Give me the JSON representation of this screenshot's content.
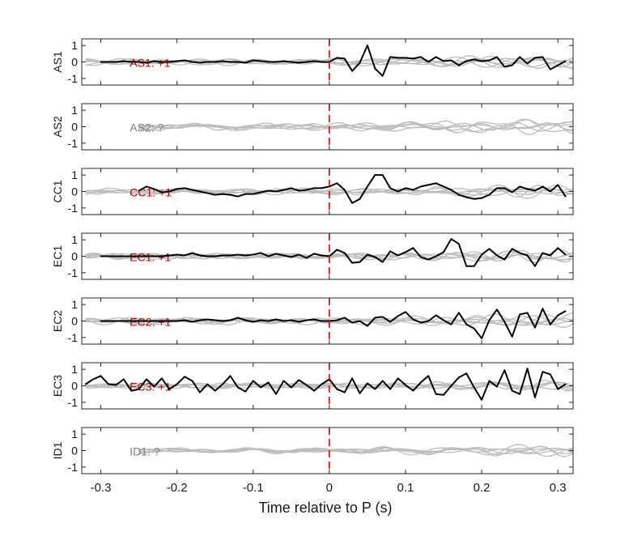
{
  "chart_data": {
    "type": "line",
    "xlabel": "Time relative to P (s)",
    "xlim": [
      -0.325,
      0.32
    ],
    "x_ticks": [
      -0.3,
      -0.2,
      -0.1,
      0,
      0.1,
      0.2,
      0.3
    ],
    "x_tick_labels": [
      "-0.3",
      "-0.2",
      "-0.1",
      "0",
      "0.1",
      "0.2",
      "0.3"
    ],
    "ylim": [
      -1.4,
      1.4
    ],
    "y_ticks": [
      1,
      0,
      -1
    ],
    "y_tick_labels": [
      "1",
      "0",
      "-1"
    ],
    "p_marker_x": 0,
    "colors": {
      "main_trace": "#000000",
      "background_traces": "#bdbdbd",
      "polarity_known": "#c00000",
      "polarity_unknown": "#808080",
      "p_marker": "#e00000"
    },
    "panels": [
      {
        "station": "AS1",
        "annotation": "AS1: +1",
        "polarity": "known",
        "x": [
          -0.3,
          -0.29,
          -0.28,
          -0.27,
          -0.26,
          -0.25,
          -0.24,
          -0.23,
          -0.22,
          -0.21,
          -0.2,
          -0.19,
          -0.18,
          -0.17,
          -0.16,
          -0.15,
          -0.14,
          -0.13,
          -0.12,
          -0.11,
          -0.1,
          -0.09,
          -0.08,
          -0.07,
          -0.06,
          -0.05,
          -0.04,
          -0.03,
          -0.02,
          -0.01,
          0,
          0.01,
          0.02,
          0.03,
          0.04,
          0.05,
          0.06,
          0.07,
          0.08,
          0.09,
          0.1,
          0.11,
          0.12,
          0.13,
          0.14,
          0.15,
          0.16,
          0.17,
          0.18,
          0.19,
          0.2,
          0.21,
          0.22,
          0.23,
          0.24,
          0.25,
          0.26,
          0.27,
          0.28,
          0.29,
          0.3,
          0.31
        ],
        "y": [
          0,
          0,
          0,
          0.05,
          0,
          0,
          -0.05,
          0.05,
          0,
          0,
          0.05,
          0.1,
          0,
          -0.05,
          0,
          0,
          0.05,
          0,
          0,
          -0.05,
          0.1,
          0.05,
          0,
          0,
          0.05,
          0,
          -0.05,
          0,
          0.05,
          0,
          0,
          0.25,
          0.2,
          -0.55,
          -0.05,
          1,
          -0.4,
          -0.85,
          0.3,
          0.25,
          0.25,
          0.2,
          0.3,
          0,
          0.3,
          0.05,
          0.1,
          -0.2,
          0.05,
          0.15,
          0.05,
          0.1,
          0.3,
          -0.3,
          -0.2,
          0.3,
          -0.1,
          0.25,
          0.3,
          -0.45,
          -0.2,
          0.05
        ]
      },
      {
        "station": "AS2",
        "annotation": "AS2: ?",
        "polarity": "unknown",
        "x": [],
        "y": []
      },
      {
        "station": "CC1",
        "annotation": "CC1: +1",
        "polarity": "known",
        "x": [
          -0.25,
          -0.24,
          -0.23,
          -0.22,
          -0.21,
          -0.2,
          -0.19,
          -0.18,
          -0.17,
          -0.16,
          -0.15,
          -0.14,
          -0.13,
          -0.12,
          -0.11,
          -0.1,
          -0.09,
          -0.08,
          -0.07,
          -0.06,
          -0.05,
          -0.04,
          -0.03,
          -0.02,
          -0.01,
          0,
          0.01,
          0.02,
          0.03,
          0.04,
          0.05,
          0.06,
          0.07,
          0.08,
          0.09,
          0.1,
          0.11,
          0.12,
          0.13,
          0.14,
          0.15,
          0.16,
          0.17,
          0.18,
          0.19,
          0.2,
          0.21,
          0.22,
          0.23,
          0.24,
          0.25,
          0.26,
          0.27,
          0.28,
          0.29,
          0.3,
          0.31
        ],
        "y": [
          0.05,
          0.3,
          0.15,
          -0.05,
          0,
          0.15,
          0.2,
          0.1,
          0,
          -0.1,
          -0.2,
          -0.15,
          -0.2,
          -0.3,
          -0.15,
          -0.15,
          -0.05,
          0.05,
          0,
          0.1,
          0.2,
          0.05,
          0.1,
          0.2,
          0.2,
          0.3,
          0.5,
          0.1,
          -0.7,
          -0.45,
          0.3,
          1,
          1,
          0.2,
          0,
          0.2,
          0.1,
          0.3,
          0.4,
          0.5,
          0.3,
          0.1,
          -0.2,
          -0.35,
          -0.45,
          -0.4,
          -0.2,
          0.2,
          0.2,
          -0.05,
          0.3,
          0.15,
          0.05,
          0.3,
          0,
          0.4,
          -0.3
        ]
      },
      {
        "station": "EC1",
        "annotation": "EC1: +1",
        "polarity": "known",
        "x": [
          -0.3,
          -0.29,
          -0.28,
          -0.27,
          -0.26,
          -0.25,
          -0.24,
          -0.23,
          -0.22,
          -0.21,
          -0.2,
          -0.19,
          -0.18,
          -0.17,
          -0.16,
          -0.15,
          -0.14,
          -0.13,
          -0.12,
          -0.11,
          -0.1,
          -0.09,
          -0.08,
          -0.07,
          -0.06,
          -0.05,
          -0.04,
          -0.03,
          -0.02,
          -0.01,
          0,
          0.01,
          0.02,
          0.03,
          0.04,
          0.05,
          0.06,
          0.07,
          0.08,
          0.09,
          0.1,
          0.11,
          0.12,
          0.13,
          0.14,
          0.15,
          0.16,
          0.17,
          0.18,
          0.19,
          0.2,
          0.21,
          0.22,
          0.23,
          0.24,
          0.25,
          0.26,
          0.27,
          0.28,
          0.29,
          0.3,
          0.31
        ],
        "y": [
          0,
          0,
          0,
          0,
          0,
          0,
          0,
          0,
          0,
          0.05,
          0.1,
          0.05,
          0.2,
          0.05,
          0,
          0,
          0.05,
          0.05,
          0.1,
          0.05,
          0.1,
          0.2,
          0,
          0.15,
          0.05,
          -0.05,
          0.1,
          -0.1,
          0.15,
          0.05,
          0,
          0.4,
          0.2,
          -0.4,
          -0.35,
          0.1,
          -0.05,
          -0.35,
          0.3,
          0.05,
          0.25,
          0.5,
          -0.05,
          -0.2,
          0,
          0.25,
          1.05,
          0.75,
          -0.6,
          -0.6,
          0.1,
          0.45,
          0.05,
          -0.2,
          0.45,
          0.2,
          0.05,
          -0.6,
          0.2,
          0.05,
          0.5,
          0.1
        ]
      },
      {
        "station": "EC2",
        "annotation": "EC2: +1",
        "polarity": "known",
        "x": [
          -0.3,
          -0.29,
          -0.28,
          -0.27,
          -0.26,
          -0.25,
          -0.24,
          -0.23,
          -0.22,
          -0.21,
          -0.2,
          -0.19,
          -0.18,
          -0.17,
          -0.16,
          -0.15,
          -0.14,
          -0.13,
          -0.12,
          -0.11,
          -0.1,
          -0.09,
          -0.08,
          -0.07,
          -0.06,
          -0.05,
          -0.04,
          -0.03,
          -0.02,
          -0.01,
          0,
          0.01,
          0.02,
          0.03,
          0.04,
          0.05,
          0.06,
          0.07,
          0.08,
          0.09,
          0.1,
          0.11,
          0.12,
          0.13,
          0.14,
          0.15,
          0.16,
          0.17,
          0.18,
          0.19,
          0.2,
          0.21,
          0.22,
          0.23,
          0.24,
          0.25,
          0.26,
          0.27,
          0.28,
          0.29,
          0.3,
          0.31
        ],
        "y": [
          0,
          0,
          0,
          0,
          0,
          0,
          0,
          0,
          0,
          0,
          0,
          0.05,
          -0.05,
          0.05,
          0.1,
          0.05,
          0,
          0.05,
          0.2,
          0.05,
          -0.05,
          0.05,
          0,
          0.1,
          0,
          0.05,
          -0.05,
          0.05,
          0.1,
          0,
          0,
          0.05,
          0.2,
          -0.1,
          0,
          -0.3,
          0.2,
          0.25,
          -0.05,
          0.3,
          0.55,
          0.1,
          -0.1,
          0,
          0.35,
          0.05,
          -0.2,
          0.5,
          -0.2,
          -0.45,
          -1.05,
          0.05,
          0.7,
          -0.05,
          -0.95,
          0.4,
          0.5,
          -0.4,
          0.75,
          -0.2,
          0.35,
          0.6
        ]
      },
      {
        "station": "EC3",
        "annotation": "EC3: +1",
        "polarity": "known",
        "x": [
          -0.32,
          -0.31,
          -0.3,
          -0.29,
          -0.28,
          -0.27,
          -0.26,
          -0.25,
          -0.24,
          -0.23,
          -0.22,
          -0.21,
          -0.2,
          -0.19,
          -0.18,
          -0.17,
          -0.16,
          -0.15,
          -0.14,
          -0.13,
          -0.12,
          -0.11,
          -0.1,
          -0.09,
          -0.08,
          -0.07,
          -0.06,
          -0.05,
          -0.04,
          -0.03,
          -0.02,
          -0.01,
          0,
          0.01,
          0.02,
          0.03,
          0.04,
          0.05,
          0.06,
          0.07,
          0.08,
          0.09,
          0.1,
          0.11,
          0.12,
          0.13,
          0.14,
          0.15,
          0.16,
          0.17,
          0.18,
          0.19,
          0.2,
          0.21,
          0.22,
          0.23,
          0.24,
          0.25,
          0.26,
          0.27,
          0.28,
          0.29,
          0.3,
          0.31
        ],
        "y": [
          0.1,
          0.4,
          0.6,
          0.1,
          0.05,
          0.4,
          -0.3,
          -0.2,
          0.4,
          -0.05,
          0.45,
          -0.2,
          0.1,
          0.55,
          0.3,
          -0.4,
          0.1,
          -0.3,
          0.1,
          0.6,
          -0.1,
          -0.35,
          0.3,
          -0.1,
          0.2,
          -0.5,
          0.3,
          -0.1,
          0.35,
          0.05,
          -0.3,
          0.1,
          0.4,
          -0.2,
          -0.4,
          0.45,
          -0.45,
          0.15,
          -0.2,
          0.3,
          -0.2,
          0.45,
          0.05,
          -0.3,
          0.2,
          0.6,
          -0.5,
          -0.55,
          0,
          0.5,
          0.75,
          -0.1,
          -0.85,
          0.3,
          -0.05,
          0.95,
          -0.3,
          -0.5,
          1.05,
          -0.7,
          0.85,
          0.7,
          -0.2,
          0.1
        ]
      },
      {
        "station": "ID1",
        "annotation": "ID1: ?",
        "polarity": "unknown",
        "x": [],
        "y": []
      }
    ]
  }
}
